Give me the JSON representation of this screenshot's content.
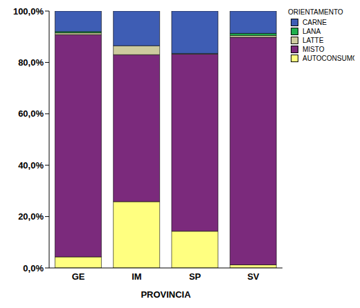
{
  "chart_data": {
    "type": "bar",
    "x_label": "PROVINCIA",
    "legend_title": "ORIENTAMENTO",
    "categories": [
      "GE",
      "IM",
      "SP",
      "SV"
    ],
    "series": [
      {
        "name": "AUTOCONSUMO",
        "color": "#FFFF80",
        "values": [
          4.3,
          25.8,
          14.3,
          1.2
        ]
      },
      {
        "name": "MISTO",
        "color": "#7B2A7C",
        "values": [
          86.5,
          57.2,
          68.9,
          88.6
        ]
      },
      {
        "name": "LATTE",
        "color": "#CDCB9E",
        "values": [
          0.7,
          3.5,
          0.3,
          0.7
        ]
      },
      {
        "name": "LANA",
        "color": "#1FAE4C",
        "values": [
          0.5,
          0,
          0,
          0.8
        ]
      },
      {
        "name": "CARNE",
        "color": "#3E5DB4",
        "values": [
          8.0,
          13.5,
          16.5,
          8.7
        ]
      }
    ],
    "ylim": [
      0,
      100
    ],
    "yticks": [
      {
        "value": 0,
        "label": "0,0%"
      },
      {
        "value": 20,
        "label": "20,0%"
      },
      {
        "value": 40,
        "label": "40,0%"
      },
      {
        "value": 60,
        "label": "60,0%"
      },
      {
        "value": 80,
        "label": "80,0%"
      },
      {
        "value": 100,
        "label": "100,0%"
      }
    ],
    "stacked": true,
    "legend": "right",
    "grid": false
  }
}
